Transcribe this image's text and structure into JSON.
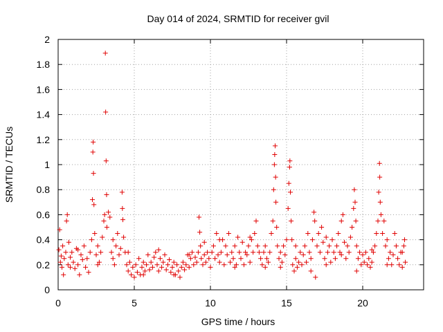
{
  "chart_data": {
    "type": "scatter",
    "title": "Day 014 of 2024, SRMTID for receiver gvil",
    "xlabel": "GPS time / hours",
    "ylabel": "SRMTID / TECUs",
    "xlim": [
      0,
      24
    ],
    "ylim": [
      0,
      2
    ],
    "xticks": [
      0,
      5,
      10,
      15,
      20
    ],
    "xtick_labels": [
      "0",
      "5",
      "10",
      "15",
      "20"
    ],
    "yticks": [
      0,
      0.2,
      0.4,
      0.6,
      0.8,
      1,
      1.2,
      1.4,
      1.6,
      1.8,
      2
    ],
    "ytick_labels": [
      "0",
      "0.2",
      "0.4",
      "0.6",
      "0.8",
      "1",
      "1.2",
      "1.4",
      "1.6",
      "1.8",
      "2"
    ],
    "grid": true,
    "marker": "+",
    "series": [
      {
        "name": "SRMTID",
        "color": "#e00000",
        "points": [
          [
            0.05,
            0.32
          ],
          [
            0.1,
            0.48
          ],
          [
            0.15,
            0.22
          ],
          [
            0.2,
            0.27
          ],
          [
            0.25,
            0.18
          ],
          [
            0.3,
            0.35
          ],
          [
            0.35,
            0.12
          ],
          [
            0.4,
            0.25
          ],
          [
            0.5,
            0.3
          ],
          [
            0.55,
            0.55
          ],
          [
            0.6,
            0.6
          ],
          [
            0.65,
            0.2
          ],
          [
            0.7,
            0.38
          ],
          [
            0.8,
            0.26
          ],
          [
            0.9,
            0.3
          ],
          [
            1.0,
            0.22
          ],
          [
            1.1,
            0.17
          ],
          [
            1.2,
            0.33
          ],
          [
            1.3,
            0.2
          ],
          [
            1.4,
            0.12
          ],
          [
            1.5,
            0.28
          ],
          [
            1.6,
            0.24
          ],
          [
            1.7,
            0.35
          ],
          [
            1.8,
            0.18
          ],
          [
            1.9,
            0.25
          ],
          [
            2.0,
            0.14
          ],
          [
            2.1,
            0.3
          ],
          [
            2.2,
            0.4
          ],
          [
            2.25,
            0.72
          ],
          [
            2.28,
            1.1
          ],
          [
            2.3,
            1.18
          ],
          [
            2.32,
            0.93
          ],
          [
            2.35,
            0.68
          ],
          [
            2.4,
            0.45
          ],
          [
            2.5,
            0.28
          ],
          [
            2.6,
            0.35
          ],
          [
            2.7,
            0.22
          ],
          [
            2.8,
            0.3
          ],
          [
            2.9,
            0.42
          ],
          [
            3.0,
            0.55
          ],
          [
            3.05,
            0.6
          ],
          [
            3.1,
            1.89
          ],
          [
            3.12,
            1.42
          ],
          [
            3.15,
            1.03
          ],
          [
            3.18,
            0.76
          ],
          [
            3.2,
            0.5
          ],
          [
            3.3,
            0.62
          ],
          [
            3.4,
            0.58
          ],
          [
            3.5,
            0.3
          ],
          [
            3.6,
            0.25
          ],
          [
            3.7,
            0.2
          ],
          [
            3.8,
            0.35
          ],
          [
            3.9,
            0.45
          ],
          [
            4.0,
            0.28
          ],
          [
            4.1,
            0.33
          ],
          [
            4.2,
            0.78
          ],
          [
            4.22,
            0.65
          ],
          [
            4.25,
            0.56
          ],
          [
            4.3,
            0.42
          ],
          [
            4.4,
            0.3
          ],
          [
            4.5,
            0.2
          ],
          [
            4.6,
            0.15
          ],
          [
            4.7,
            0.22
          ],
          [
            4.8,
            0.12
          ],
          [
            4.9,
            0.18
          ],
          [
            5.0,
            0.1
          ],
          [
            5.1,
            0.2
          ],
          [
            5.2,
            0.14
          ],
          [
            5.3,
            0.25
          ],
          [
            5.4,
            0.12
          ],
          [
            5.5,
            0.18
          ],
          [
            5.6,
            0.22
          ],
          [
            5.7,
            0.15
          ],
          [
            5.8,
            0.2
          ],
          [
            5.9,
            0.28
          ],
          [
            6.0,
            0.16
          ],
          [
            6.1,
            0.22
          ],
          [
            6.2,
            0.18
          ],
          [
            6.3,
            0.26
          ],
          [
            6.4,
            0.3
          ],
          [
            6.5,
            0.2
          ],
          [
            6.6,
            0.15
          ],
          [
            6.7,
            0.25
          ],
          [
            6.8,
            0.18
          ],
          [
            6.9,
            0.22
          ],
          [
            7.0,
            0.28
          ],
          [
            7.1,
            0.16
          ],
          [
            7.2,
            0.2
          ],
          [
            7.3,
            0.24
          ],
          [
            7.4,
            0.14
          ],
          [
            7.5,
            0.18
          ],
          [
            7.6,
            0.22
          ],
          [
            7.7,
            0.12
          ],
          [
            7.8,
            0.2
          ],
          [
            7.9,
            0.15
          ],
          [
            8.0,
            0.1
          ],
          [
            8.1,
            0.18
          ],
          [
            8.2,
            0.22
          ],
          [
            8.3,
            0.16
          ],
          [
            8.4,
            0.2
          ],
          [
            8.5,
            0.28
          ],
          [
            8.6,
            0.18
          ],
          [
            8.7,
            0.25
          ],
          [
            8.8,
            0.3
          ],
          [
            8.9,
            0.2
          ],
          [
            9.0,
            0.26
          ],
          [
            9.1,
            0.22
          ],
          [
            9.2,
            0.3
          ],
          [
            9.25,
            0.58
          ],
          [
            9.3,
            0.46
          ],
          [
            9.35,
            0.35
          ],
          [
            9.4,
            0.25
          ],
          [
            9.5,
            0.2
          ],
          [
            9.6,
            0.28
          ],
          [
            9.7,
            0.22
          ],
          [
            9.8,
            0.3
          ],
          [
            9.9,
            0.25
          ],
          [
            10.0,
            0.18
          ],
          [
            10.1,
            0.3
          ],
          [
            10.2,
            0.35
          ],
          [
            10.3,
            0.25
          ],
          [
            10.4,
            0.45
          ],
          [
            10.5,
            0.28
          ],
          [
            10.6,
            0.22
          ],
          [
            10.7,
            0.3
          ],
          [
            10.8,
            0.4
          ],
          [
            10.9,
            0.2
          ],
          [
            11.0,
            0.35
          ],
          [
            11.1,
            0.28
          ],
          [
            11.2,
            0.45
          ],
          [
            11.3,
            0.22
          ],
          [
            11.4,
            0.3
          ],
          [
            11.5,
            0.25
          ],
          [
            11.6,
            0.35
          ],
          [
            11.7,
            0.2
          ],
          [
            11.8,
            0.42
          ],
          [
            11.9,
            0.3
          ],
          [
            12.0,
            0.25
          ],
          [
            12.1,
            0.38
          ],
          [
            12.2,
            0.2
          ],
          [
            12.3,
            0.3
          ],
          [
            12.4,
            0.28
          ],
          [
            12.5,
            0.35
          ],
          [
            12.6,
            0.22
          ],
          [
            12.7,
            0.4
          ],
          [
            12.8,
            0.3
          ],
          [
            12.9,
            0.45
          ],
          [
            13.0,
            0.55
          ],
          [
            13.1,
            0.35
          ],
          [
            13.2,
            0.3
          ],
          [
            13.3,
            0.25
          ],
          [
            13.4,
            0.2
          ],
          [
            13.5,
            0.3
          ],
          [
            13.6,
            0.18
          ],
          [
            13.7,
            0.25
          ],
          [
            13.8,
            0.22
          ],
          [
            13.9,
            0.3
          ],
          [
            14.0,
            0.45
          ],
          [
            14.1,
            0.55
          ],
          [
            14.15,
            0.8
          ],
          [
            14.2,
            1.0
          ],
          [
            14.22,
            1.08
          ],
          [
            14.25,
            1.15
          ],
          [
            14.28,
            0.9
          ],
          [
            14.3,
            0.7
          ],
          [
            14.35,
            0.5
          ],
          [
            14.4,
            0.35
          ],
          [
            14.5,
            0.25
          ],
          [
            14.6,
            0.3
          ],
          [
            14.7,
            0.22
          ],
          [
            14.8,
            0.35
          ],
          [
            14.9,
            0.28
          ],
          [
            15.0,
            0.4
          ],
          [
            15.1,
            0.65
          ],
          [
            15.15,
            0.85
          ],
          [
            15.2,
            0.98
          ],
          [
            15.22,
            1.03
          ],
          [
            15.25,
            0.78
          ],
          [
            15.3,
            0.55
          ],
          [
            15.35,
            0.4
          ],
          [
            15.4,
            0.2
          ],
          [
            15.5,
            0.15
          ],
          [
            15.6,
            0.25
          ],
          [
            15.7,
            0.18
          ],
          [
            15.8,
            0.22
          ],
          [
            15.9,
            0.3
          ],
          [
            16.0,
            0.2
          ],
          [
            16.1,
            0.28
          ],
          [
            16.2,
            0.35
          ],
          [
            16.3,
            0.22
          ],
          [
            16.4,
            0.45
          ],
          [
            16.5,
            0.3
          ],
          [
            16.6,
            0.25
          ],
          [
            16.7,
            0.4
          ],
          [
            16.8,
            0.62
          ],
          [
            16.85,
            0.55
          ],
          [
            16.9,
            0.1
          ],
          [
            17.0,
            0.35
          ],
          [
            17.1,
            0.45
          ],
          [
            17.2,
            0.3
          ],
          [
            17.3,
            0.5
          ],
          [
            17.4,
            0.38
          ],
          [
            17.5,
            0.25
          ],
          [
            17.6,
            0.42
          ],
          [
            17.7,
            0.3
          ],
          [
            17.8,
            0.35
          ],
          [
            17.9,
            0.22
          ],
          [
            18.0,
            0.4
          ],
          [
            18.1,
            0.3
          ],
          [
            18.2,
            0.25
          ],
          [
            18.3,
            0.35
          ],
          [
            18.4,
            0.45
          ],
          [
            18.5,
            0.3
          ],
          [
            18.6,
            0.55
          ],
          [
            18.7,
            0.6
          ],
          [
            18.8,
            0.38
          ],
          [
            18.9,
            0.25
          ],
          [
            19.0,
            0.35
          ],
          [
            19.1,
            0.3
          ],
          [
            19.2,
            0.42
          ],
          [
            19.3,
            0.5
          ],
          [
            19.4,
            0.65
          ],
          [
            19.45,
            0.8
          ],
          [
            19.5,
            0.7
          ],
          [
            19.55,
            0.55
          ],
          [
            19.6,
            0.35
          ],
          [
            19.7,
            0.25
          ],
          [
            19.8,
            0.3
          ],
          [
            19.9,
            0.2
          ],
          [
            20.0,
            0.28
          ],
          [
            20.1,
            0.22
          ],
          [
            20.2,
            0.3
          ],
          [
            20.3,
            0.2
          ],
          [
            20.4,
            0.25
          ],
          [
            20.5,
            0.18
          ],
          [
            20.6,
            0.22
          ],
          [
            20.7,
            0.3
          ],
          [
            20.8,
            0.35
          ],
          [
            20.9,
            0.45
          ],
          [
            21.0,
            0.55
          ],
          [
            21.05,
            0.78
          ],
          [
            21.1,
            1.01
          ],
          [
            21.12,
            0.9
          ],
          [
            21.15,
            0.7
          ],
          [
            21.2,
            0.6
          ],
          [
            21.3,
            0.45
          ],
          [
            21.4,
            0.55
          ],
          [
            21.5,
            0.35
          ],
          [
            21.6,
            0.4
          ],
          [
            21.7,
            0.25
          ],
          [
            21.8,
            0.3
          ],
          [
            21.9,
            0.2
          ],
          [
            22.0,
            0.28
          ],
          [
            22.1,
            0.45
          ],
          [
            22.2,
            0.35
          ],
          [
            22.3,
            0.25
          ],
          [
            22.4,
            0.2
          ],
          [
            22.5,
            0.3
          ],
          [
            22.6,
            0.18
          ],
          [
            22.7,
            0.35
          ],
          [
            22.75,
            0.4
          ],
          [
            22.8,
            0.22
          ],
          [
            0.8,
            0.18
          ],
          [
            1.3,
            0.32
          ],
          [
            2.6,
            0.2
          ],
          [
            3.6,
            0.4
          ],
          [
            4.6,
            0.3
          ],
          [
            5.6,
            0.12
          ],
          [
            6.6,
            0.32
          ],
          [
            7.6,
            0.12
          ],
          [
            8.6,
            0.28
          ],
          [
            9.6,
            0.38
          ],
          [
            10.6,
            0.4
          ],
          [
            11.6,
            0.18
          ],
          [
            12.6,
            0.42
          ],
          [
            13.6,
            0.35
          ],
          [
            14.6,
            0.18
          ],
          [
            15.6,
            0.35
          ],
          [
            16.6,
            0.15
          ],
          [
            17.6,
            0.2
          ],
          [
            18.6,
            0.28
          ],
          [
            19.6,
            0.15
          ],
          [
            20.6,
            0.32
          ],
          [
            21.6,
            0.2
          ],
          [
            22.6,
            0.3
          ]
        ]
      }
    ]
  }
}
